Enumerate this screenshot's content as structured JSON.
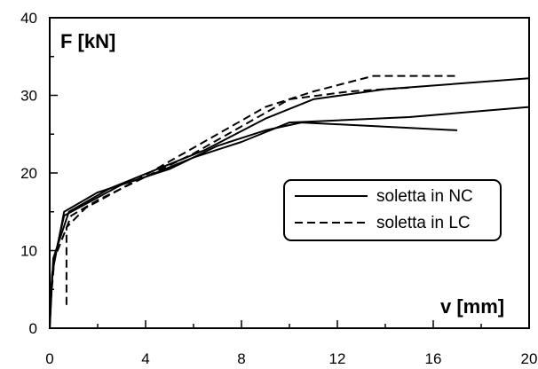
{
  "chart_data": {
    "type": "line",
    "ylabel": "F [kN]",
    "xlabel": "v [mm]",
    "xlim": [
      0,
      20
    ],
    "ylim": [
      0,
      40
    ],
    "x_ticks": [
      0,
      4,
      8,
      12,
      16,
      20
    ],
    "y_ticks": [
      0,
      10,
      20,
      30,
      40
    ],
    "grid": false,
    "legend_position": "center-right",
    "series": [
      {
        "name": "soletta in NC",
        "style": "solid",
        "lines": [
          [
            [
              0,
              0
            ],
            [
              0.05,
              5
            ],
            [
              0.2,
              9
            ],
            [
              0.6,
              14.5
            ],
            [
              1.5,
              16
            ],
            [
              3,
              18.5
            ],
            [
              5,
              20.5
            ],
            [
              7,
              23.5
            ],
            [
              9,
              25.5
            ],
            [
              10.5,
              26.5
            ],
            [
              17,
              25.5
            ]
          ],
          [
            [
              0,
              0
            ],
            [
              0.1,
              7
            ],
            [
              0.6,
              15
            ],
            [
              2,
              17.5
            ],
            [
              4,
              19.5
            ],
            [
              6,
              22
            ],
            [
              8,
              24
            ],
            [
              10,
              26.5
            ],
            [
              15,
              27.2
            ],
            [
              20,
              28.5
            ]
          ],
          [
            [
              0,
              0
            ],
            [
              0.15,
              9
            ],
            [
              0.8,
              15
            ],
            [
              2.5,
              18
            ],
            [
              4.5,
              20.5
            ],
            [
              6.5,
              23
            ],
            [
              9,
              27
            ],
            [
              11,
              29.5
            ],
            [
              14,
              30.8
            ],
            [
              20,
              32.2
            ]
          ]
        ]
      },
      {
        "name": "soletta in LC",
        "style": "dashed",
        "lines": [
          [
            [
              0.7,
              3
            ],
            [
              0.7,
              13
            ],
            [
              1.5,
              15.5
            ],
            [
              3,
              18
            ],
            [
              5,
              21.5
            ],
            [
              7,
              25
            ],
            [
              9,
              28.5
            ],
            [
              11,
              30.5
            ],
            [
              13.5,
              32.5
            ],
            [
              17,
              32.5
            ]
          ],
          [
            [
              0,
              2
            ],
            [
              0.2,
              9
            ],
            [
              0.9,
              14.5
            ],
            [
              2,
              16.5
            ],
            [
              4,
              19.5
            ],
            [
              6,
              22.5
            ],
            [
              8,
              26
            ],
            [
              10,
              29.5
            ],
            [
              12.5,
              30.5
            ],
            [
              15,
              31
            ]
          ]
        ]
      }
    ]
  }
}
